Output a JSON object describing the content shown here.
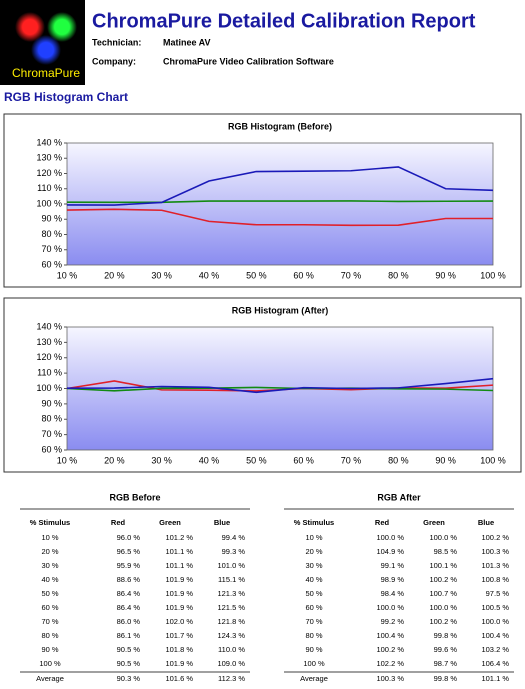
{
  "header": {
    "logo_text": "ChromaPure",
    "title": "ChromaPure Detailed Calibration Report",
    "fields": [
      {
        "label": "Technician:",
        "value": "Matinee AV"
      },
      {
        "label": "Company:",
        "value": "ChromaPure Video Calibration Software"
      }
    ]
  },
  "section_title": "RGB Histogram Chart",
  "chart_data": [
    {
      "type": "line",
      "title": "RGB Histogram (Before)",
      "categories": [
        "10 %",
        "20 %",
        "30 %",
        "40 %",
        "50 %",
        "60 %",
        "70 %",
        "80 %",
        "90 %",
        "100 %"
      ],
      "ylim": [
        60,
        140
      ],
      "yticks": [
        {
          "value": 60,
          "label": "60 %"
        },
        {
          "value": 70,
          "label": "70 %"
        },
        {
          "value": 80,
          "label": "80 %"
        },
        {
          "value": 90,
          "label": "90 %"
        },
        {
          "value": 100,
          "label": "100 %"
        },
        {
          "value": 110,
          "label": "110 %"
        },
        {
          "value": 120,
          "label": "120 %"
        },
        {
          "value": 130,
          "label": "130 %"
        },
        {
          "value": 140,
          "label": "140 %"
        }
      ],
      "series": [
        {
          "name": "Red",
          "color": "#e0202a",
          "values": [
            96.0,
            96.5,
            95.9,
            88.6,
            86.4,
            86.4,
            86.0,
            86.1,
            90.5,
            90.5
          ]
        },
        {
          "name": "Green",
          "color": "#128a12",
          "values": [
            101.2,
            101.1,
            101.1,
            101.9,
            101.9,
            101.9,
            102.0,
            101.7,
            101.8,
            101.9
          ]
        },
        {
          "name": "Blue",
          "color": "#1a1ab8",
          "values": [
            99.4,
            99.3,
            101.0,
            115.1,
            121.3,
            121.5,
            121.8,
            124.3,
            110.0,
            109.0
          ]
        }
      ]
    },
    {
      "type": "line",
      "title": "RGB Histogram (After)",
      "categories": [
        "10 %",
        "20 %",
        "30 %",
        "40 %",
        "50 %",
        "60 %",
        "70 %",
        "80 %",
        "90 %",
        "100 %"
      ],
      "ylim": [
        60,
        140
      ],
      "yticks": [
        {
          "value": 60,
          "label": "60 %"
        },
        {
          "value": 70,
          "label": "70 %"
        },
        {
          "value": 80,
          "label": "80 %"
        },
        {
          "value": 90,
          "label": "90 %"
        },
        {
          "value": 100,
          "label": "100 %"
        },
        {
          "value": 110,
          "label": "110 %"
        },
        {
          "value": 120,
          "label": "120 %"
        },
        {
          "value": 130,
          "label": "130 %"
        },
        {
          "value": 140,
          "label": "140 %"
        }
      ],
      "series": [
        {
          "name": "Red",
          "color": "#e0202a",
          "values": [
            100.0,
            104.9,
            99.1,
            98.9,
            98.4,
            100.0,
            99.2,
            100.4,
            100.2,
            102.2
          ]
        },
        {
          "name": "Green",
          "color": "#128a12",
          "values": [
            100.0,
            98.5,
            100.1,
            100.2,
            100.7,
            100.0,
            100.2,
            99.8,
            99.6,
            98.7
          ]
        },
        {
          "name": "Blue",
          "color": "#1a1ab8",
          "values": [
            100.2,
            100.3,
            101.3,
            100.8,
            97.5,
            100.5,
            100.0,
            100.4,
            103.2,
            106.4
          ]
        }
      ]
    }
  ],
  "tables": [
    {
      "title": "RGB Before",
      "columns": [
        "% Stimulus",
        "Red",
        "Green",
        "Blue"
      ],
      "rows": [
        [
          "10 %",
          "96.0 %",
          "101.2 %",
          "99.4 %"
        ],
        [
          "20 %",
          "96.5 %",
          "101.1 %",
          "99.3 %"
        ],
        [
          "30 %",
          "95.9 %",
          "101.1 %",
          "101.0 %"
        ],
        [
          "40 %",
          "88.6 %",
          "101.9 %",
          "115.1 %"
        ],
        [
          "50 %",
          "86.4 %",
          "101.9 %",
          "121.3 %"
        ],
        [
          "60 %",
          "86.4 %",
          "101.9 %",
          "121.5 %"
        ],
        [
          "70 %",
          "86.0 %",
          "102.0 %",
          "121.8 %"
        ],
        [
          "80 %",
          "86.1 %",
          "101.7 %",
          "124.3 %"
        ],
        [
          "90 %",
          "90.5 %",
          "101.8 %",
          "110.0 %"
        ],
        [
          "100 %",
          "90.5 %",
          "101.9 %",
          "109.0 %"
        ]
      ],
      "footer": [
        "Average",
        "90.3 %",
        "101.6 %",
        "112.3 %"
      ]
    },
    {
      "title": "RGB After",
      "columns": [
        "% Stimulus",
        "Red",
        "Green",
        "Blue"
      ],
      "rows": [
        [
          "10 %",
          "100.0 %",
          "100.0 %",
          "100.2 %"
        ],
        [
          "20 %",
          "104.9 %",
          "98.5 %",
          "100.3 %"
        ],
        [
          "30 %",
          "99.1 %",
          "100.1 %",
          "101.3 %"
        ],
        [
          "40 %",
          "98.9 %",
          "100.2 %",
          "100.8 %"
        ],
        [
          "50 %",
          "98.4 %",
          "100.7 %",
          "97.5 %"
        ],
        [
          "60 %",
          "100.0 %",
          "100.0 %",
          "100.5 %"
        ],
        [
          "70 %",
          "99.2 %",
          "100.2 %",
          "100.0 %"
        ],
        [
          "80 %",
          "100.4 %",
          "99.8 %",
          "100.4 %"
        ],
        [
          "90 %",
          "100.2 %",
          "99.6 %",
          "103.2 %"
        ],
        [
          "100 %",
          "102.2 %",
          "98.7 %",
          "106.4 %"
        ]
      ],
      "footer": [
        "Average",
        "100.3 %",
        "99.8 %",
        "101.1 %"
      ]
    }
  ]
}
